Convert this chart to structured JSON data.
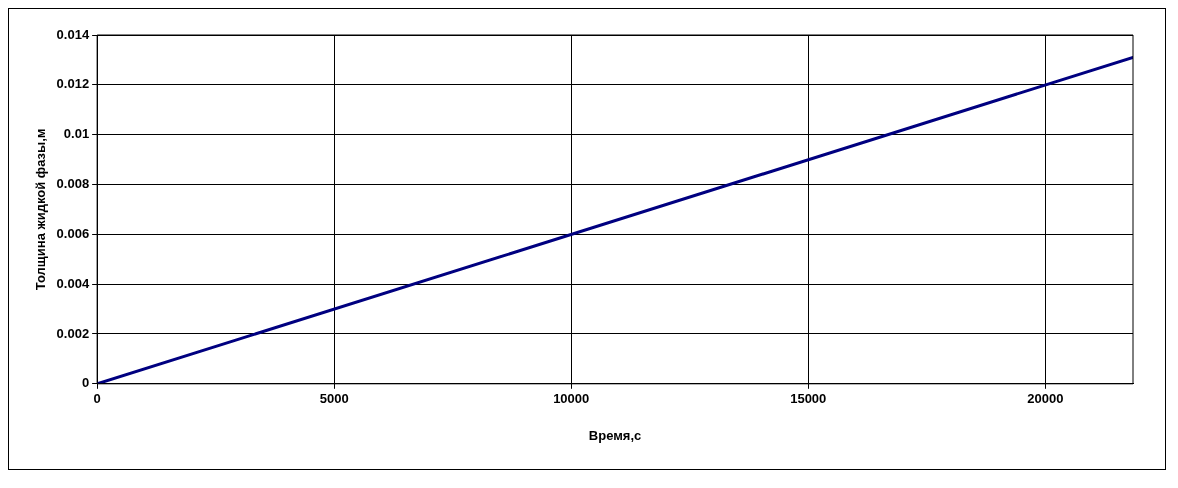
{
  "chart_data": {
    "type": "line",
    "xlabel": "Время,с",
    "ylabel": "Толщина жидкой фазы,м",
    "series": [
      {
        "color": "#000080",
        "x": [
          0,
          21850
        ],
        "values": [
          0,
          0.0131
        ]
      }
    ],
    "xlim": [
      0,
      21850
    ],
    "ylim": [
      0,
      0.014
    ],
    "xticks": [
      0,
      5000,
      10000,
      15000,
      20000
    ],
    "yticks": [
      0,
      0.002,
      0.004,
      0.006,
      0.008,
      0.01,
      0.012,
      0.014
    ],
    "grid": true,
    "legend": false,
    "marker": "none",
    "line_style": "solid"
  }
}
